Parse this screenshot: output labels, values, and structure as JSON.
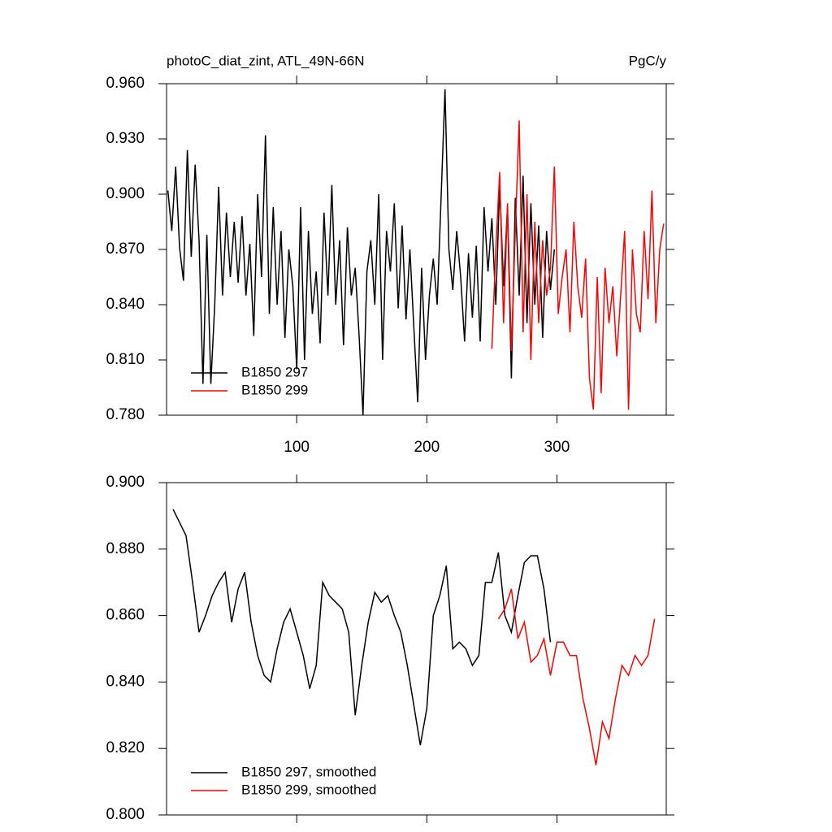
{
  "chart_data": [
    {
      "type": "line",
      "title": "photoC_diat_zint, ATL_49N-66N",
      "units": "PgC/y",
      "xlim": [
        0,
        384
      ],
      "xticks": [
        100,
        200,
        300
      ],
      "show_xtick_labels": true,
      "ylim": [
        0.78,
        0.96
      ],
      "yticks": [
        {
          "value": 0.78,
          "label": "0.780"
        },
        {
          "value": 0.81,
          "label": "0.810"
        },
        {
          "value": 0.84,
          "label": "0.840"
        },
        {
          "value": 0.87,
          "label": "0.870"
        },
        {
          "value": 0.9,
          "label": "0.900"
        },
        {
          "value": 0.93,
          "label": "0.930"
        },
        {
          "value": 0.96,
          "label": "0.960"
        }
      ],
      "legend": "lower left",
      "series": [
        {
          "name": "B1850 297",
          "color": "#000000",
          "x": [
            1,
            4,
            7,
            10,
            13,
            16,
            19,
            22,
            25,
            28,
            31,
            34,
            37,
            40,
            43,
            46,
            49,
            52,
            55,
            58,
            61,
            64,
            67,
            70,
            73,
            76,
            79,
            82,
            85,
            88,
            91,
            94,
            97,
            100,
            103,
            106,
            109,
            112,
            115,
            118,
            121,
            124,
            127,
            130,
            133,
            136,
            139,
            142,
            145,
            148,
            151,
            154,
            157,
            160,
            163,
            166,
            169,
            172,
            175,
            178,
            181,
            184,
            187,
            190,
            193,
            196,
            199,
            202,
            205,
            208,
            211,
            214,
            217,
            220,
            223,
            226,
            229,
            232,
            235,
            238,
            241,
            244,
            247,
            250,
            253,
            256,
            259,
            262,
            265,
            268,
            271,
            274,
            277,
            280,
            283,
            286,
            289,
            292,
            295,
            298
          ],
          "values": [
            0.902,
            0.88,
            0.915,
            0.871,
            0.853,
            0.924,
            0.866,
            0.916,
            0.875,
            0.797,
            0.878,
            0.797,
            0.84,
            0.904,
            0.845,
            0.89,
            0.855,
            0.885,
            0.852,
            0.888,
            0.845,
            0.873,
            0.823,
            0.9,
            0.855,
            0.932,
            0.835,
            0.893,
            0.84,
            0.88,
            0.822,
            0.87,
            0.85,
            0.805,
            0.893,
            0.81,
            0.88,
            0.835,
            0.858,
            0.819,
            0.89,
            0.845,
            0.905,
            0.84,
            0.875,
            0.818,
            0.882,
            0.845,
            0.86,
            0.823,
            0.78,
            0.858,
            0.875,
            0.84,
            0.9,
            0.81,
            0.88,
            0.858,
            0.895,
            0.838,
            0.883,
            0.832,
            0.87,
            0.828,
            0.787,
            0.86,
            0.81,
            0.845,
            0.865,
            0.84,
            0.898,
            0.957,
            0.87,
            0.848,
            0.88,
            0.855,
            0.82,
            0.868,
            0.833,
            0.872,
            0.82,
            0.893,
            0.858,
            0.887,
            0.84,
            0.905,
            0.85,
            0.893,
            0.8,
            0.898,
            0.845,
            0.91,
            0.83,
            0.895,
            0.84,
            0.883,
            0.822,
            0.88,
            0.848,
            0.87
          ]
        },
        {
          "name": "B1850 299",
          "color": "#ff0000",
          "x": [
            250,
            253,
            256,
            259,
            262,
            265,
            268,
            271,
            274,
            277,
            280,
            283,
            286,
            289,
            292,
            295,
            298,
            301,
            304,
            307,
            310,
            313,
            316,
            319,
            322,
            325,
            328,
            331,
            334,
            337,
            340,
            343,
            346,
            349,
            352,
            355,
            358,
            361,
            364,
            367,
            370,
            373,
            376,
            379,
            382
          ],
          "values": [
            0.816,
            0.87,
            0.912,
            0.83,
            0.895,
            0.815,
            0.88,
            0.94,
            0.825,
            0.9,
            0.81,
            0.885,
            0.83,
            0.875,
            0.845,
            0.86,
            0.915,
            0.835,
            0.855,
            0.87,
            0.825,
            0.885,
            0.85,
            0.833,
            0.865,
            0.8,
            0.783,
            0.855,
            0.792,
            0.86,
            0.83,
            0.85,
            0.812,
            0.845,
            0.88,
            0.783,
            0.87,
            0.835,
            0.825,
            0.88,
            0.843,
            0.902,
            0.83,
            0.87,
            0.884
          ]
        }
      ]
    },
    {
      "type": "line",
      "xlim": [
        0,
        384
      ],
      "xticks": [
        100,
        200,
        300
      ],
      "show_xtick_labels": false,
      "ylim": [
        0.8,
        0.9
      ],
      "yticks": [
        {
          "value": 0.8,
          "label": "0.800"
        },
        {
          "value": 0.82,
          "label": "0.820"
        },
        {
          "value": 0.84,
          "label": "0.840"
        },
        {
          "value": 0.86,
          "label": "0.860"
        },
        {
          "value": 0.88,
          "label": "0.880"
        },
        {
          "value": 0.9,
          "label": "0.900"
        }
      ],
      "legend": "lower left",
      "series": [
        {
          "name": "B1850 297, smoothed",
          "color": "#000000",
          "x": [
            5,
            10,
            15,
            20,
            25,
            30,
            35,
            40,
            45,
            50,
            55,
            60,
            65,
            70,
            75,
            80,
            85,
            90,
            95,
            100,
            105,
            110,
            115,
            120,
            125,
            130,
            135,
            140,
            145,
            150,
            155,
            160,
            165,
            170,
            175,
            180,
            185,
            190,
            195,
            200,
            205,
            210,
            215,
            220,
            225,
            230,
            235,
            240,
            245,
            250,
            255,
            260,
            265,
            270,
            275,
            280,
            285,
            290,
            295
          ],
          "values": [
            0.892,
            0.888,
            0.884,
            0.87,
            0.855,
            0.86,
            0.866,
            0.87,
            0.873,
            0.858,
            0.868,
            0.873,
            0.858,
            0.848,
            0.842,
            0.84,
            0.85,
            0.858,
            0.862,
            0.855,
            0.848,
            0.838,
            0.845,
            0.87,
            0.866,
            0.864,
            0.862,
            0.855,
            0.83,
            0.845,
            0.858,
            0.867,
            0.864,
            0.866,
            0.86,
            0.855,
            0.845,
            0.833,
            0.821,
            0.832,
            0.86,
            0.866,
            0.875,
            0.85,
            0.852,
            0.85,
            0.845,
            0.848,
            0.87,
            0.87,
            0.879,
            0.86,
            0.855,
            0.866,
            0.876,
            0.878,
            0.878,
            0.868,
            0.852
          ]
        },
        {
          "name": "B1850 299, smoothed",
          "color": "#ff0000",
          "x": [
            255,
            260,
            265,
            270,
            275,
            280,
            285,
            290,
            295,
            300,
            305,
            310,
            315,
            320,
            325,
            330,
            335,
            340,
            345,
            350,
            355,
            360,
            365,
            370,
            375
          ],
          "values": [
            0.859,
            0.862,
            0.868,
            0.853,
            0.858,
            0.846,
            0.848,
            0.853,
            0.842,
            0.852,
            0.852,
            0.848,
            0.848,
            0.835,
            0.826,
            0.815,
            0.828,
            0.823,
            0.835,
            0.845,
            0.842,
            0.848,
            0.845,
            0.848,
            0.859
          ]
        }
      ]
    }
  ]
}
